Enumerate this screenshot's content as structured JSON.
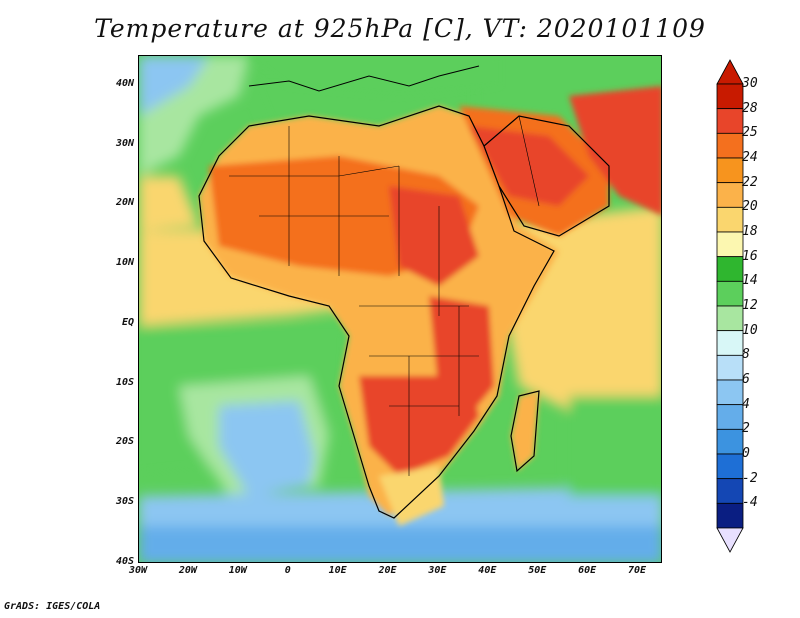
{
  "title": "Temperature at 925hPa [C], VT: 2020101109",
  "credit": "GrADS: IGES/COLA",
  "map": {
    "projection": "lat-lon",
    "lon_range": [
      -30,
      75
    ],
    "lat_range": [
      -40,
      45
    ],
    "lat_ticks": [
      "40N",
      "30N",
      "20N",
      "10N",
      "EQ",
      "10S",
      "20S",
      "30S",
      "40S"
    ],
    "lon_ticks": [
      "30W",
      "20W",
      "10W",
      "0",
      "10E",
      "20E",
      "30E",
      "40E",
      "50E",
      "60E",
      "70E"
    ],
    "field": "temperature at 925hPa",
    "ocean_color": "#7fd07f",
    "land_color": "#e8452a"
  },
  "colorbar": {
    "labels": [
      "30",
      "28",
      "25",
      "24",
      "22",
      "20",
      "18",
      "16",
      "14",
      "12",
      "10",
      "8",
      "6",
      "4",
      "2",
      "0",
      "-2",
      "-4"
    ],
    "colors": [
      "#c81a00",
      "#e8452a",
      "#f4701e",
      "#f7941e",
      "#fbb24a",
      "#fad66e",
      "#fcf7b0",
      "#2fb62f",
      "#5ccf5c",
      "#a8e6a0",
      "#d8f7f7",
      "#b8dff8",
      "#8cc6f2",
      "#64adea",
      "#3c93e0",
      "#1e6fd6",
      "#1447b4",
      "#0a1e82"
    ]
  }
}
